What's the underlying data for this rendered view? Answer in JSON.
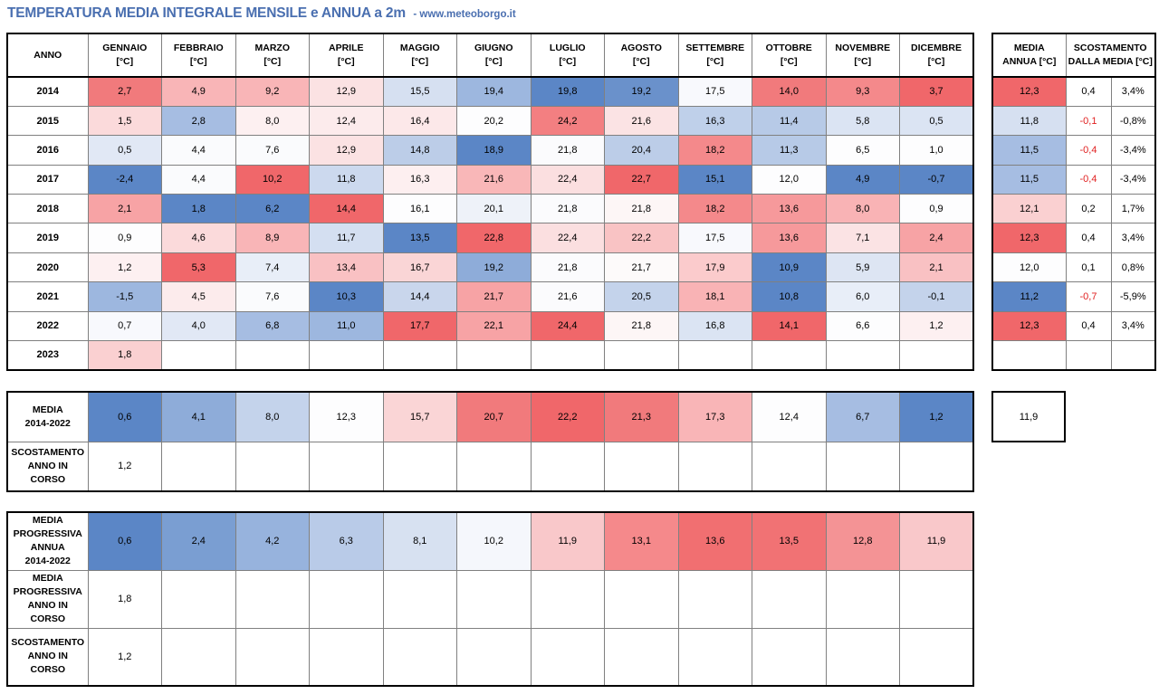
{
  "title": "TEMPERATURA MEDIA INTEGRALE MENSILE e ANNUA a 2m",
  "site": "- www.meteoborgo.it",
  "header": {
    "anno": "ANNO",
    "months": [
      "GENNAIO",
      "FEBBRAIO",
      "MARZO",
      "APRILE",
      "MAGGIO",
      "GIUGNO",
      "LUGLIO",
      "AGOSTO",
      "SETTEMBRE",
      "OTTOBRE",
      "NOVEMBRE",
      "DICEMBRE"
    ],
    "unit": "[°C]",
    "media_annua_l1": "MEDIA",
    "media_annua_l2": "ANNUA [°C]",
    "scost_l1": "SCOSTAMENTO",
    "scost_l2": "DALLA MEDIA [°C]"
  },
  "rows": [
    {
      "year": "2014",
      "values": [
        "2,7",
        "4,9",
        "9,2",
        "12,9",
        "15,5",
        "19,4",
        "19,8",
        "19,2",
        "17,5",
        "14,0",
        "9,3",
        "3,7"
      ],
      "colors": [
        "#f17a7c",
        "#f9b5b7",
        "#f9b5b7",
        "#fbe2e3",
        "#d6e0f1",
        "#9db7df",
        "#5b86c6",
        "#6a91cb",
        "#f8f9fd",
        "#f17a7c",
        "#f4898b",
        "#f0676a"
      ],
      "annual": "12,3",
      "annual_color": "#f0676a",
      "dev": "0,4",
      "dev_pct": "3,4%",
      "dev_neg": false
    },
    {
      "year": "2015",
      "values": [
        "1,5",
        "2,8",
        "8,0",
        "12,4",
        "16,4",
        "20,2",
        "24,2",
        "21,6",
        "16,3",
        "11,4",
        "5,8",
        "0,5"
      ],
      "colors": [
        "#fbdadb",
        "#a6bde2",
        "#fdf0f1",
        "#fcebec",
        "#fce8e9",
        "#fdfdfe",
        "#f37f81",
        "#fbe3e4",
        "#bfd0ea",
        "#b7cae7",
        "#dbe4f3",
        "#dbe4f3"
      ],
      "annual": "11,8",
      "annual_color": "#d6e0f1",
      "dev": "-0,1",
      "dev_pct": "-0,8%",
      "dev_neg": true
    },
    {
      "year": "2016",
      "values": [
        "0,5",
        "4,4",
        "7,6",
        "12,9",
        "14,8",
        "18,9",
        "21,8",
        "20,4",
        "18,2",
        "11,3",
        "6,5",
        "1,0"
      ],
      "colors": [
        "#e1e8f5",
        "#fafbfd",
        "#fafbfd",
        "#fbe2e3",
        "#bccde8",
        "#5b86c6",
        "#fbfbfd",
        "#bccde8",
        "#f4898b",
        "#b7cae7",
        "#fdfdfe",
        "#fdfdfe"
      ],
      "annual": "11,5",
      "annual_color": "#a6bde2",
      "dev": "-0,4",
      "dev_pct": "-3,4%",
      "dev_neg": true
    },
    {
      "year": "2017",
      "values": [
        "-2,4",
        "4,4",
        "10,2",
        "11,8",
        "16,3",
        "21,6",
        "22,4",
        "22,7",
        "15,1",
        "12,0",
        "4,9",
        "-0,7"
      ],
      "colors": [
        "#5b86c6",
        "#fafbfd",
        "#f0676a",
        "#ccd9ee",
        "#fdeff0",
        "#f9b7b8",
        "#fbdfe0",
        "#f0676a",
        "#5b86c6",
        "#fdfdfe",
        "#5b86c6",
        "#5b86c6"
      ],
      "annual": "11,5",
      "annual_color": "#a6bde2",
      "dev": "-0,4",
      "dev_pct": "-3,4%",
      "dev_neg": true
    },
    {
      "year": "2018",
      "values": [
        "2,1",
        "1,8",
        "6,2",
        "14,4",
        "16,1",
        "20,1",
        "21,8",
        "21,8",
        "18,2",
        "13,6",
        "8,0",
        "0,9"
      ],
      "colors": [
        "#f7a3a5",
        "#5b86c6",
        "#5b86c6",
        "#f0676a",
        "#fdfdfe",
        "#eef2f9",
        "#fbfbfd",
        "#fdf6f6",
        "#f4898b",
        "#f6999b",
        "#f9b3b5",
        "#fdfdfe"
      ],
      "annual": "12,1",
      "annual_color": "#fad0d1",
      "dev": "0,2",
      "dev_pct": "1,7%",
      "dev_neg": false
    },
    {
      "year": "2019",
      "values": [
        "0,9",
        "4,6",
        "8,9",
        "11,7",
        "13,5",
        "22,8",
        "22,4",
        "22,2",
        "17,5",
        "13,6",
        "7,1",
        "2,4"
      ],
      "colors": [
        "#fdfdfe",
        "#fbdadb",
        "#f9b5b7",
        "#d4dff1",
        "#5b86c6",
        "#f0676a",
        "#fbdfe0",
        "#f9c3c4",
        "#f8f9fd",
        "#f6999b",
        "#fbe3e4",
        "#f7a3a5"
      ],
      "annual": "12,3",
      "annual_color": "#f0676a",
      "dev": "0,4",
      "dev_pct": "3,4%",
      "dev_neg": false
    },
    {
      "year": "2020",
      "values": [
        "1,2",
        "5,3",
        "7,4",
        "13,4",
        "16,7",
        "19,2",
        "21,8",
        "21,7",
        "17,9",
        "10,9",
        "5,9",
        "2,1"
      ],
      "colors": [
        "#fdf0f1",
        "#f0676a",
        "#e8eef8",
        "#f9c1c3",
        "#fad5d6",
        "#8eacd9",
        "#fbfbfd",
        "#fdfafa",
        "#fbcbcc",
        "#5b86c6",
        "#dde5f3",
        "#f9c1c3"
      ],
      "annual": "12,0",
      "annual_color": "#fdfdfe",
      "dev": "0,1",
      "dev_pct": "0,8%",
      "dev_neg": false
    },
    {
      "year": "2021",
      "values": [
        "-1,5",
        "4,5",
        "7,6",
        "10,3",
        "14,4",
        "21,7",
        "21,6",
        "20,5",
        "18,1",
        "10,8",
        "6,0",
        "-0,1"
      ],
      "colors": [
        "#9db7df",
        "#fcebec",
        "#fafbfd",
        "#5b86c6",
        "#c9d6ec",
        "#f7a3a5",
        "#fbfbfd",
        "#c4d3eb",
        "#f9b3b5",
        "#5b86c6",
        "#e8eef8",
        "#c4d3eb"
      ],
      "annual": "11,2",
      "annual_color": "#5b86c6",
      "dev": "-0,7",
      "dev_pct": "-5,9%",
      "dev_neg": true
    },
    {
      "year": "2022",
      "values": [
        "0,7",
        "4,0",
        "6,8",
        "11,0",
        "17,7",
        "22,1",
        "24,4",
        "21,8",
        "16,8",
        "14,1",
        "6,6",
        "1,2"
      ],
      "colors": [
        "#f8f9fd",
        "#e1e8f5",
        "#a6bde2",
        "#9db7df",
        "#f0676a",
        "#f7a3a5",
        "#f0676a",
        "#fdf6f6",
        "#dbe4f3",
        "#f0676a",
        "#fdfdfe",
        "#fdf0f1"
      ],
      "annual": "12,3",
      "annual_color": "#f0676a",
      "dev": "0,4",
      "dev_pct": "3,4%",
      "dev_neg": false
    },
    {
      "year": "2023",
      "values": [
        "1,8",
        "",
        "",
        "",
        "",
        "",
        "",
        "",
        "",
        "",
        "",
        ""
      ],
      "colors": [
        "#fad0d1",
        "#ffffff",
        "#ffffff",
        "#ffffff",
        "#ffffff",
        "#ffffff",
        "#ffffff",
        "#ffffff",
        "#ffffff",
        "#ffffff",
        "#ffffff",
        "#ffffff"
      ],
      "annual": "",
      "annual_color": "#ffffff",
      "dev": "",
      "dev_pct": "",
      "dev_neg": false
    }
  ],
  "media_section": {
    "label": "MEDIA\n2014-2022",
    "values": [
      "0,6",
      "4,1",
      "8,0",
      "12,3",
      "15,7",
      "20,7",
      "22,2",
      "21,3",
      "17,3",
      "12,4",
      "6,7",
      "1,2"
    ],
    "colors": [
      "#5b86c6",
      "#8eacd9",
      "#c4d3eb",
      "#fdfdfe",
      "#fad5d6",
      "#f17a7c",
      "#f0676a",
      "#f17a7c",
      "#f9b5b7",
      "#fdfdfe",
      "#a6bde2",
      "#5b86c6"
    ],
    "total": "11,9",
    "scost_label": "SCOSTAMENTO\nANNO IN\nCORSO",
    "scost_values": [
      "1,2",
      "",
      "",
      "",
      "",
      "",
      "",
      "",
      "",
      "",
      "",
      ""
    ]
  },
  "progressiva_section": {
    "label": "MEDIA\nPROGRESSIVA\nANNUA\n2014-2022",
    "values": [
      "0,6",
      "2,4",
      "4,2",
      "6,3",
      "8,1",
      "10,2",
      "11,9",
      "13,1",
      "13,6",
      "13,5",
      "12,8",
      "11,9"
    ],
    "colors": [
      "#5b86c6",
      "#7a9ed2",
      "#97b3dd",
      "#b9cbe8",
      "#d7e1f1",
      "#f5f7fc",
      "#f9c8ca",
      "#f5898b",
      "#f16f71",
      "#f17274",
      "#f49395",
      "#f9c8ca"
    ],
    "corso_label": "MEDIA\nPROGRESSIVA\nANNO IN\nCORSO",
    "corso_values": [
      "1,8",
      "",
      "",
      "",
      "",
      "",
      "",
      "",
      "",
      "",
      "",
      ""
    ],
    "scost_label": "SCOSTAMENTO\nANNO IN\nCORSO",
    "scost_values": [
      "1,2",
      "",
      "",
      "",
      "",
      "",
      "",
      "",
      "",
      "",
      "",
      ""
    ]
  }
}
